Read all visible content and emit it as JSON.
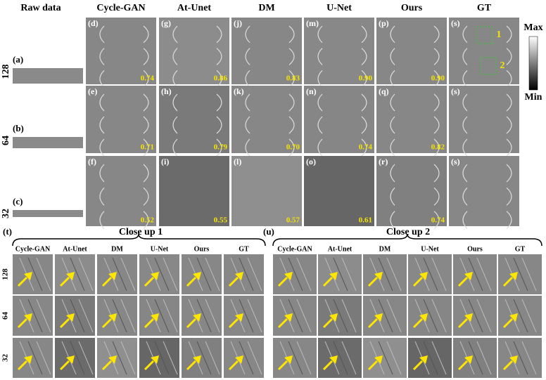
{
  "header": {
    "raw_data": "Raw data",
    "methods": [
      "Cycle-GAN",
      "At-Unet",
      "DM",
      "U-Net",
      "Ours",
      "GT"
    ]
  },
  "rows": [
    {
      "label": "128",
      "raw_panel": "(a)",
      "panels": [
        "(d)",
        "(g)",
        "(j)",
        "(m)",
        "(p)",
        "(s)"
      ],
      "scores": [
        "0.74",
        "0.86",
        "0.83",
        "0.90",
        "0.90"
      ]
    },
    {
      "label": "64",
      "raw_panel": "(b)",
      "panels": [
        "(e)",
        "(h)",
        "(k)",
        "(n)",
        "(q)",
        "(s)"
      ],
      "scores": [
        "0.71",
        "0.79",
        "0.70",
        "0.74",
        "0.82"
      ]
    },
    {
      "label": "32",
      "raw_panel": "(c)",
      "panels": [
        "(f)",
        "(i)",
        "(l)",
        "(o)",
        "(r)",
        "(s)"
      ],
      "scores": [
        "0.52",
        "0.55",
        "0.57",
        "0.61",
        "0.74"
      ]
    }
  ],
  "gt_boxes": [
    "1",
    "2"
  ],
  "colorbar": {
    "max": "Max",
    "min": "Min"
  },
  "closeups": [
    {
      "panel": "(t)",
      "title": "Close up 1",
      "columns": [
        "Cycle-GAN",
        "At-Unet",
        "DM",
        "U-Net",
        "Ours",
        "GT"
      ],
      "rows": [
        "128",
        "64",
        "32"
      ]
    },
    {
      "panel": "(u)",
      "title": "Close up 2",
      "columns": [
        "Cycle-GAN",
        "At-Unet",
        "DM",
        "U-Net",
        "Ours",
        "GT"
      ],
      "rows": [
        "128",
        "64",
        "32"
      ]
    }
  ]
}
